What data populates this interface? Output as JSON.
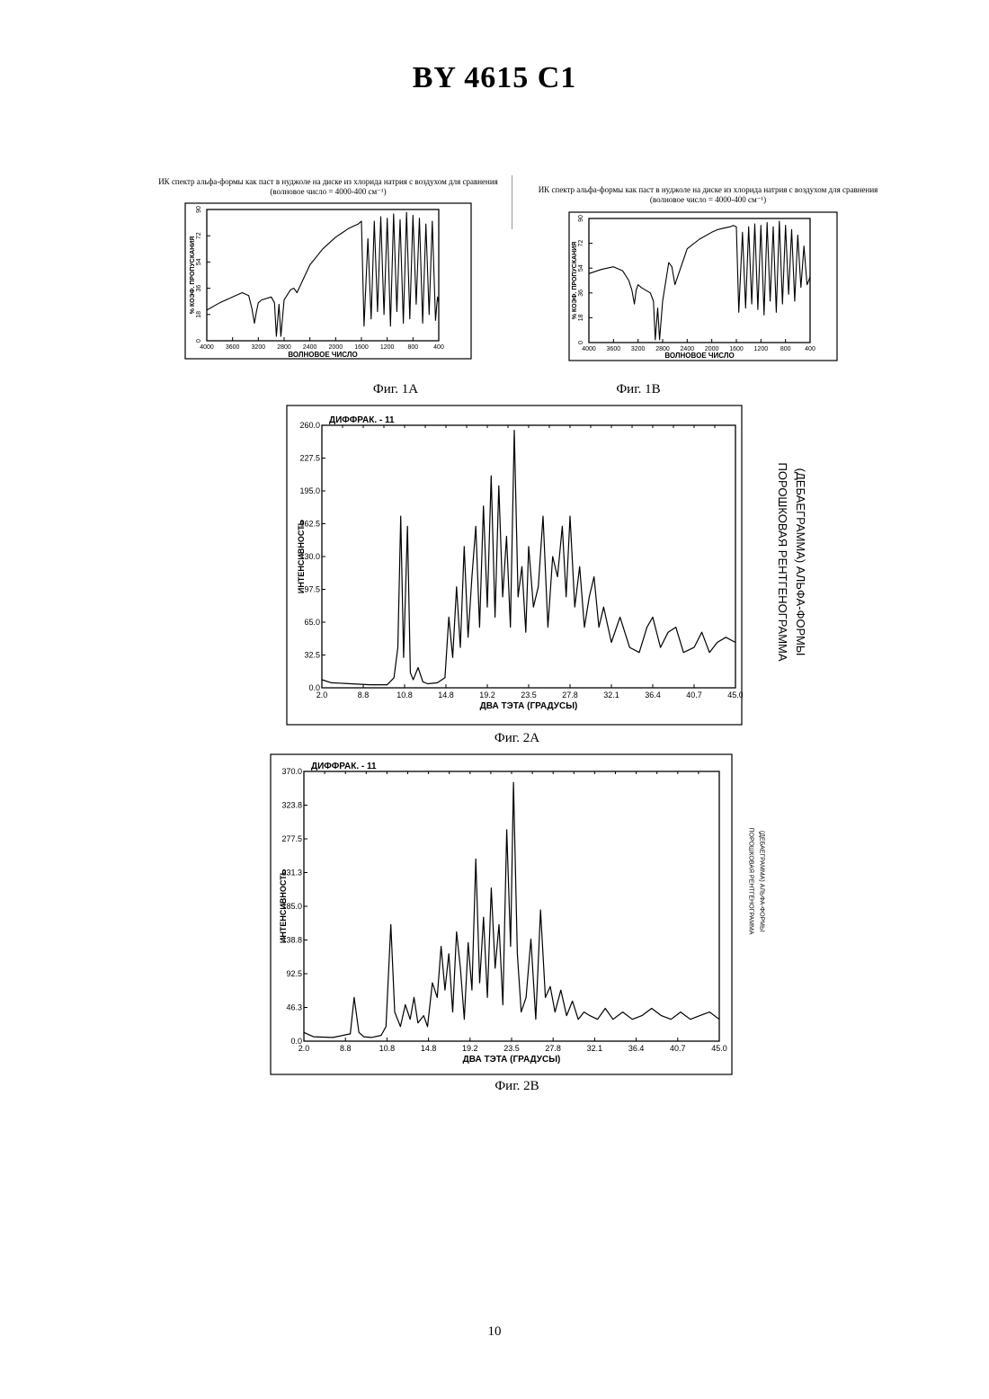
{
  "document": {
    "title": "BY 4615 C1",
    "page_number": "10"
  },
  "colors": {
    "ink": "#000000",
    "paper": "#ffffff"
  },
  "chart_data": [
    {
      "id": "fig1a",
      "type": "line",
      "caption": "Фиг. 1A",
      "title_line1": "ИК спектр альфа-формы как паст в нуджоле на диске из хлорида натрия с воздухом для сравнения",
      "title_line2": "(волновое число = 4000-400 см⁻¹)",
      "xlabel": "ВОЛНОВОЕ ЧИСЛО",
      "ylabel": "% КОЭФ. ПРОПУСКАНИЯ",
      "xlim": [
        4000,
        400
      ],
      "ylim": [
        0,
        90
      ],
      "x_ticks": [
        "4000",
        "3600",
        "3200",
        "2800",
        "2400",
        "2000",
        "1600",
        "1200",
        "800",
        "400"
      ],
      "y_ticks": [
        "0",
        "18",
        "36",
        "54",
        "72",
        "90"
      ],
      "x": [
        4000,
        3800,
        3600,
        3450,
        3350,
        3300,
        3260,
        3230,
        3200,
        3150,
        3000,
        2950,
        2920,
        2880,
        2850,
        2800,
        2700,
        2650,
        2600,
        2400,
        2200,
        2000,
        1900,
        1800,
        1700,
        1650,
        1600,
        1560,
        1500,
        1450,
        1400,
        1350,
        1300,
        1250,
        1200,
        1150,
        1100,
        1050,
        1000,
        950,
        900,
        850,
        800,
        750,
        700,
        650,
        600,
        550,
        500,
        450,
        420,
        400
      ],
      "values": [
        21,
        26,
        30,
        33,
        31,
        22,
        12,
        20,
        26,
        28,
        30,
        26,
        3,
        25,
        3,
        28,
        35,
        36,
        33,
        52,
        63,
        71,
        74,
        77,
        79,
        80,
        82,
        10,
        70,
        15,
        82,
        20,
        85,
        18,
        84,
        10,
        87,
        20,
        83,
        12,
        88,
        15,
        86,
        25,
        84,
        12,
        80,
        18,
        82,
        14,
        30,
        26
      ]
    },
    {
      "id": "fig1b",
      "type": "line",
      "caption": "Фиг. 1B",
      "title_line1": "ИК спектр альфа-формы как паст в нуджоле на диске из хлорида натрия с воздухом для сравнения",
      "title_line2": "(волновое число = 4000-400 см⁻¹)",
      "xlabel": "ВОЛНОВОЕ ЧИСЛО",
      "ylabel": "% КОЭФ. ПРОПУСКАНИЯ",
      "xlim": [
        4000,
        400
      ],
      "ylim": [
        0,
        90
      ],
      "x_ticks": [
        "4000",
        "3600",
        "3200",
        "2800",
        "2400",
        "2000",
        "1600",
        "1200",
        "800",
        "400"
      ],
      "y_ticks": [
        "0",
        "18",
        "36",
        "54",
        "72",
        "90"
      ],
      "x": [
        4000,
        3800,
        3600,
        3450,
        3350,
        3300,
        3260,
        3230,
        3200,
        3150,
        3000,
        2950,
        2920,
        2880,
        2850,
        2800,
        2700,
        2650,
        2600,
        2400,
        2200,
        2000,
        1900,
        1800,
        1700,
        1650,
        1600,
        1560,
        1500,
        1450,
        1400,
        1350,
        1300,
        1250,
        1200,
        1150,
        1100,
        1050,
        1000,
        950,
        900,
        850,
        800,
        750,
        700,
        650,
        600,
        550,
        500,
        450,
        420,
        400
      ],
      "values": [
        50,
        53,
        55,
        52,
        45,
        38,
        28,
        38,
        42,
        40,
        36,
        30,
        2,
        25,
        2,
        30,
        58,
        55,
        42,
        68,
        75,
        80,
        82,
        83,
        84,
        85,
        84,
        22,
        80,
        25,
        84,
        28,
        86,
        24,
        85,
        20,
        87,
        30,
        84,
        22,
        88,
        28,
        85,
        35,
        82,
        30,
        78,
        40,
        70,
        42,
        45,
        48
      ]
    },
    {
      "id": "fig2a",
      "type": "line",
      "caption": "Фиг. 2A",
      "header": "ДИФФРАК. - 11",
      "side_line1": "ПОРОШКОВАЯ РЕНТГЕНОГРАММА",
      "side_line2": "(ДЕБАЕГРАММА) АЛЬФА-ФОРМЫ",
      "xlabel": "ДВА ТЭТА (ГРАДУСЫ)",
      "ylabel": "ИНТЕНСИВНОСТЬ",
      "xlim": [
        2.0,
        45.0
      ],
      "ylim": [
        0,
        260
      ],
      "x_ticks": [
        "2.0",
        "8.8",
        "10.8",
        "14.8",
        "19.2",
        "23.5",
        "27.8",
        "32.1",
        "36.4",
        "40.7",
        "45.0"
      ],
      "y_ticks": [
        "0.0",
        "32.5",
        "65.0",
        "97.5",
        "130.0",
        "162.5",
        "195.0",
        "227.5",
        "260.0"
      ],
      "x": [
        2.0,
        3.0,
        5.0,
        7.0,
        8.8,
        9.5,
        9.9,
        10.2,
        10.5,
        10.9,
        11.2,
        11.5,
        12.0,
        12.5,
        13.0,
        14.0,
        14.8,
        15.2,
        15.6,
        16.0,
        16.4,
        16.8,
        17.2,
        17.6,
        18.0,
        18.4,
        18.8,
        19.2,
        19.6,
        20.0,
        20.4,
        20.8,
        21.2,
        21.6,
        22.0,
        22.4,
        22.8,
        23.2,
        23.5,
        24.0,
        24.5,
        25.0,
        25.5,
        26.0,
        26.5,
        27.0,
        27.4,
        27.8,
        28.3,
        28.8,
        29.3,
        29.8,
        30.3,
        30.8,
        31.3,
        32.1,
        33.0,
        34.0,
        35.0,
        35.8,
        36.4,
        37.2,
        38.0,
        38.8,
        39.6,
        40.7,
        41.5,
        42.3,
        43.1,
        44.0,
        45.0
      ],
      "values": [
        8,
        5,
        4,
        3,
        3,
        10,
        40,
        170,
        30,
        160,
        15,
        8,
        20,
        6,
        4,
        5,
        10,
        70,
        30,
        100,
        40,
        140,
        50,
        110,
        160,
        60,
        180,
        80,
        210,
        70,
        200,
        90,
        150,
        60,
        255,
        90,
        120,
        55,
        140,
        80,
        100,
        170,
        60,
        130,
        110,
        160,
        90,
        170,
        80,
        120,
        60,
        90,
        110,
        60,
        80,
        45,
        70,
        40,
        35,
        60,
        70,
        40,
        55,
        60,
        35,
        40,
        55,
        35,
        45,
        50,
        45
      ]
    },
    {
      "id": "fig2b",
      "type": "line",
      "caption": "Фиг. 2B",
      "header": "ДИФФРАК. - 11",
      "side_line1": "ПОРОШКОВАЯ РЕНТГЕНОГРАММА",
      "side_line2": "(ДЕБАЕГРАММА) АЛЬФА-ФОРМЫ",
      "xlabel": "ДВА ТЭТА (ГРАДУСЫ)",
      "ylabel": "ИНТЕНСИВНОСТЬ",
      "xlim": [
        2.0,
        45.0
      ],
      "ylim": [
        0,
        370
      ],
      "x_ticks": [
        "2.0",
        "8.8",
        "10.8",
        "14.8",
        "19.2",
        "23.5",
        "27.8",
        "32.1",
        "36.4",
        "40.7",
        "45.0"
      ],
      "y_ticks": [
        "0.0",
        "46.3",
        "92.5",
        "138.8",
        "185.0",
        "231.3",
        "277.5",
        "323.8",
        "370.0"
      ],
      "x": [
        2.0,
        3.0,
        5.0,
        6.8,
        7.2,
        7.7,
        8.2,
        9.0,
        10.0,
        10.5,
        11.0,
        11.4,
        12.0,
        12.5,
        13.0,
        13.4,
        13.8,
        14.4,
        14.8,
        15.3,
        15.8,
        16.2,
        16.6,
        17.0,
        17.4,
        17.8,
        18.2,
        18.6,
        19.0,
        19.4,
        19.8,
        20.2,
        20.6,
        21.0,
        21.4,
        21.8,
        22.2,
        22.6,
        23.0,
        23.4,
        23.7,
        24.1,
        24.5,
        25.0,
        25.5,
        26.0,
        26.5,
        27.0,
        27.5,
        28.0,
        28.6,
        29.2,
        29.8,
        30.4,
        31.0,
        31.6,
        32.4,
        33.2,
        34.0,
        35.0,
        36.0,
        37.0,
        38.0,
        39.0,
        40.0,
        41.0,
        42.0,
        43.0,
        44.0,
        45.0
      ],
      "values": [
        12,
        6,
        5,
        10,
        60,
        12,
        6,
        5,
        8,
        20,
        160,
        40,
        20,
        50,
        30,
        60,
        25,
        35,
        20,
        80,
        60,
        130,
        70,
        120,
        40,
        150,
        100,
        30,
        135,
        70,
        250,
        80,
        170,
        60,
        210,
        100,
        160,
        50,
        290,
        130,
        355,
        120,
        40,
        60,
        140,
        30,
        180,
        60,
        75,
        40,
        70,
        35,
        55,
        30,
        40,
        35,
        30,
        45,
        30,
        40,
        30,
        35,
        45,
        35,
        30,
        40,
        30,
        35,
        40,
        30
      ]
    }
  ]
}
